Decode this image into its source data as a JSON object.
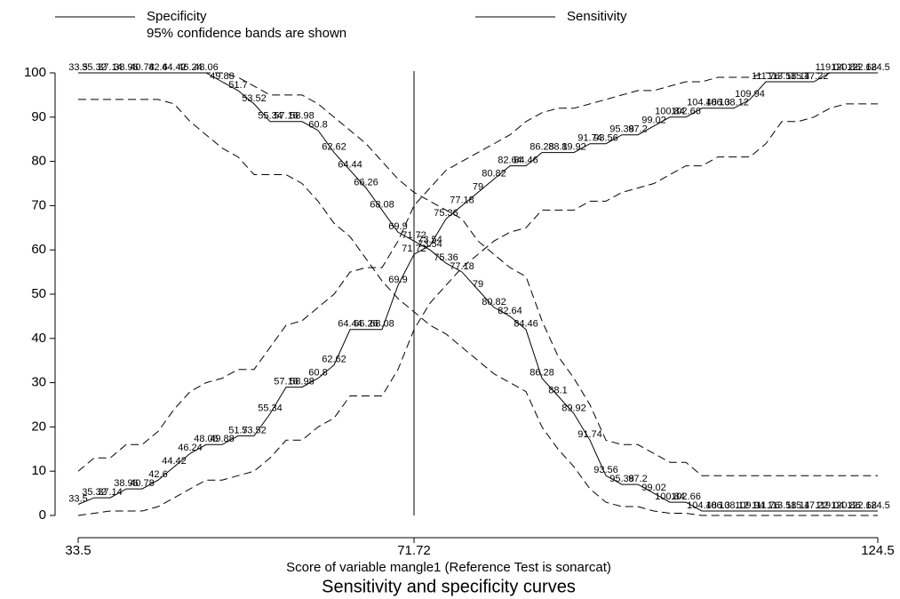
{
  "chart_data": {
    "type": "line",
    "title": "Sensitivity and specificity curves",
    "xlabel": "Score of variable mangle1 (Reference Test is sonarcat)",
    "note": "95% confidence bands are shown",
    "legend": "top",
    "xline": 71.72,
    "x": [
      33.5,
      35.32,
      37.14,
      38.96,
      40.78,
      42.6,
      44.42,
      46.24,
      48.06,
      49.88,
      51.7,
      53.52,
      55.34,
      57.16,
      58.98,
      60.8,
      62.62,
      64.44,
      66.26,
      68.08,
      69.9,
      71.72,
      73.54,
      75.36,
      77.18,
      79,
      80.82,
      82.64,
      84.46,
      86.28,
      88.1,
      89.92,
      91.74,
      93.56,
      95.38,
      97.2,
      99.02,
      100.84,
      102.66,
      104.48,
      106.3,
      108.12,
      109.94,
      111.76,
      113.58,
      115.4,
      117.22,
      119.04,
      120.86,
      122.68,
      124.5
    ],
    "series": [
      {
        "name": "Specificity",
        "color": "#000000",
        "values": [
          2.5,
          4,
          4,
          6,
          6,
          8,
          11,
          14,
          16,
          16,
          18,
          18,
          23,
          29,
          29,
          31,
          34,
          42,
          42,
          42,
          52,
          59,
          61,
          67,
          70,
          73,
          76,
          79,
          79,
          82,
          82,
          82,
          84,
          84,
          86,
          86,
          88,
          90,
          90,
          92,
          92,
          92,
          94,
          98,
          98,
          98,
          98,
          100,
          100,
          100,
          100
        ],
        "upper": [
          10,
          13,
          13,
          16,
          16,
          19,
          24,
          28,
          30,
          31,
          33,
          33,
          38,
          43,
          44,
          47,
          50,
          55,
          56,
          56,
          62,
          70,
          74,
          78,
          80,
          82,
          84,
          86,
          89,
          91,
          92,
          92,
          93,
          94,
          95,
          96,
          96,
          97,
          98,
          98,
          99,
          99,
          99,
          100,
          100,
          100,
          100,
          100,
          100,
          100,
          100
        ],
        "lower": [
          0,
          0.5,
          1,
          1,
          1,
          2,
          4,
          6,
          8,
          8,
          9,
          10,
          13,
          17,
          17,
          20,
          22,
          27,
          27,
          27,
          33,
          42,
          48,
          52,
          56,
          59,
          62,
          64,
          65,
          69,
          69,
          69,
          71,
          71,
          73,
          74,
          75,
          77,
          79,
          79,
          81,
          81,
          81,
          84,
          89,
          89,
          90,
          92,
          93,
          93,
          93
        ]
      },
      {
        "name": "Sensitivity",
        "color": "#000000",
        "values": [
          100,
          100,
          100,
          100,
          100,
          100,
          100,
          100,
          100,
          98,
          96,
          93,
          89,
          89,
          89,
          87,
          82,
          78,
          74,
          69,
          64,
          62,
          60,
          57,
          55,
          51,
          47,
          45,
          42,
          31,
          27,
          23,
          17,
          9,
          7,
          7,
          5,
          3,
          3,
          1,
          1,
          1,
          1,
          1,
          1,
          1,
          1,
          1,
          1,
          1,
          1
        ],
        "upper": [
          100,
          100,
          100,
          100,
          100,
          100,
          100,
          100,
          100,
          100,
          99,
          97,
          95,
          95,
          95,
          93,
          90,
          87,
          84,
          80,
          76,
          73,
          71,
          69,
          67,
          62,
          59,
          56,
          54,
          44,
          36,
          31,
          25,
          17,
          16,
          16,
          14,
          12,
          12,
          9,
          9,
          9,
          9,
          9,
          9,
          9,
          9,
          9,
          9,
          9,
          9
        ],
        "lower": [
          94,
          94,
          94,
          94,
          94,
          94,
          93,
          89,
          86,
          83,
          81,
          77,
          77,
          77,
          75,
          71,
          66,
          63,
          58,
          53,
          49,
          46,
          43,
          41,
          38,
          35,
          32,
          30,
          28,
          20,
          15,
          11,
          6,
          3,
          2,
          2,
          1,
          0.5,
          0.5,
          0,
          0,
          0,
          0,
          0,
          0,
          0,
          0,
          0,
          0,
          0,
          0
        ]
      }
    ],
    "xlim": [
      33.5,
      124.5
    ],
    "xticks": [
      33.5,
      71.72,
      124.5
    ],
    "ylim": [
      0,
      100
    ],
    "yticks": [
      0,
      10,
      20,
      30,
      40,
      50,
      60,
      70,
      80,
      90,
      100
    ]
  }
}
